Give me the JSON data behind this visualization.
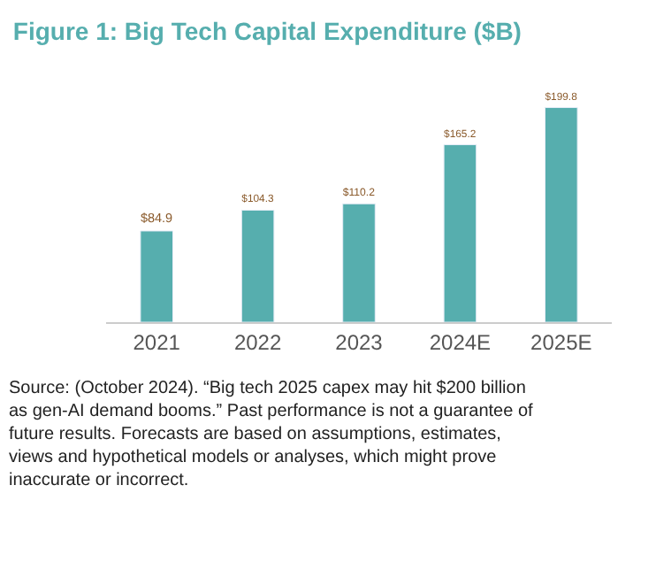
{
  "chart_data": {
    "type": "bar",
    "title": "Figure 1: Big Tech Capital Expenditure ($B)",
    "categories": [
      "2021",
      "2022",
      "2023",
      "2024E",
      "2025E"
    ],
    "values": [
      84.9,
      104.3,
      110.2,
      165.2,
      199.8
    ],
    "value_labels": [
      "$84.9",
      "$104.3",
      "$110.2",
      "$165.2",
      "$199.8"
    ],
    "color": "#56aeae",
    "annotations": [
      "Source: (October 2024). “Big tech 2025 capex may hit $200 billion as gen-AI demand booms.” Past performance is not a guarantee of future results. Forecasts are based on assumptions, estimates, views and hypothetical models or analyses, which might prove inaccurate or incorrect."
    ]
  }
}
